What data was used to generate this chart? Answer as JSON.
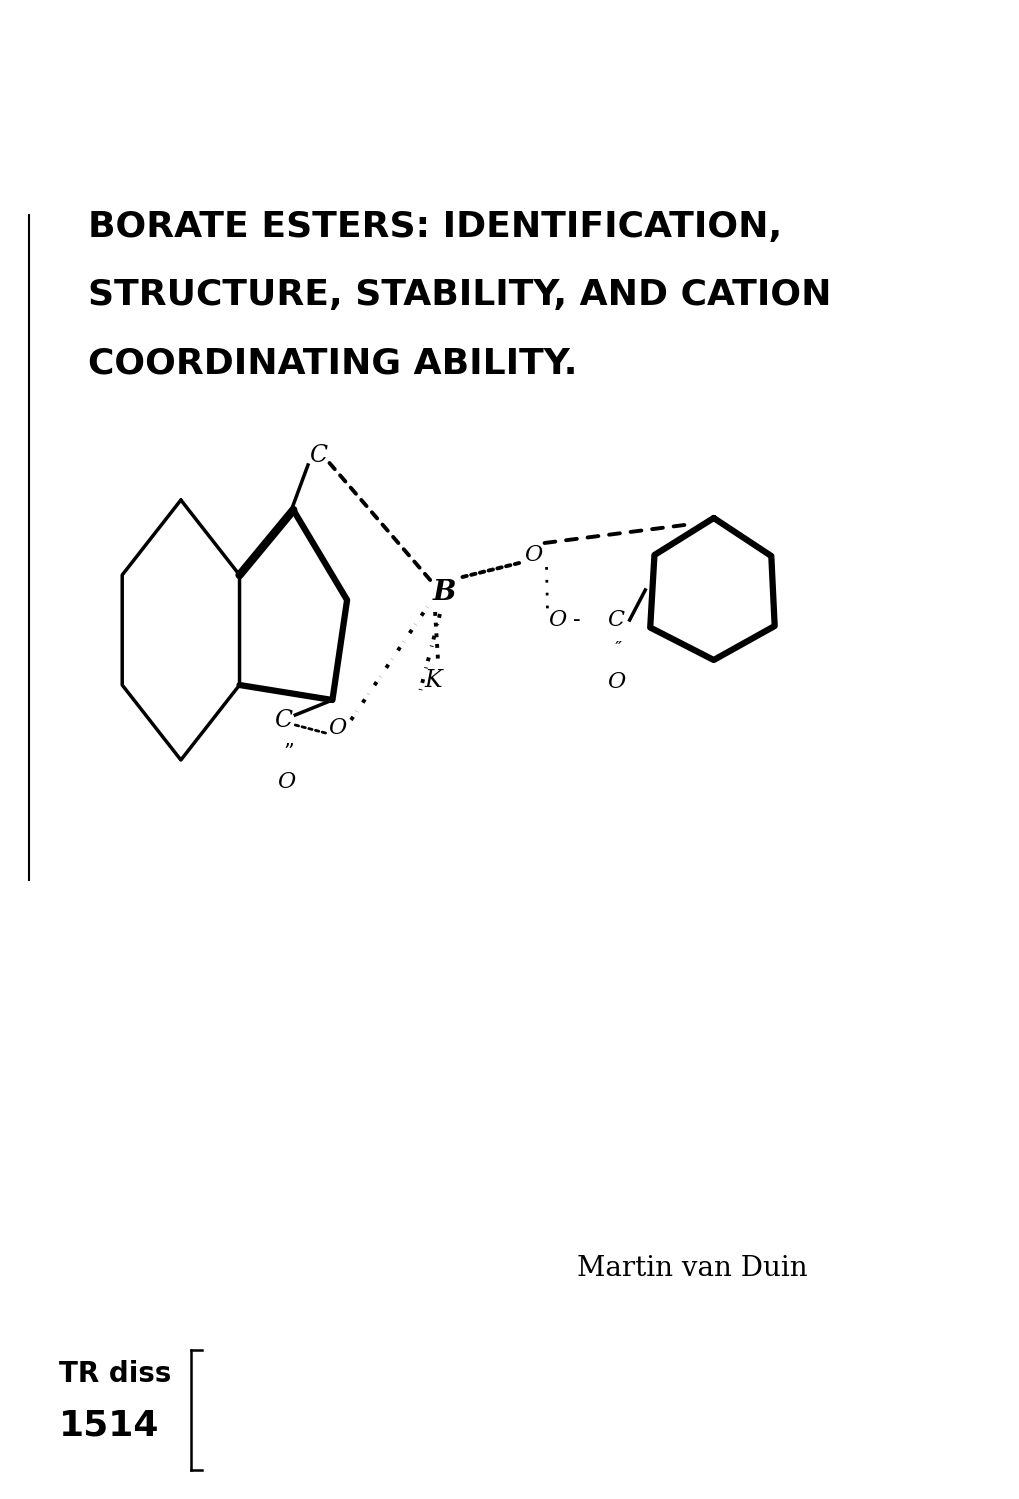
{
  "title_line1": "BORATE ESTERS: IDENTIFICATION,",
  "title_line2": "STRUCTURE, STABILITY, AND CATION",
  "title_line3": "COORDINATING ABILITY.",
  "author": "Martin van Duin",
  "trdiss": "TR diss",
  "trnum": "1514",
  "bg_color": "#ffffff",
  "text_color": "#000000",
  "title_fontsize": 26,
  "author_fontsize": 20,
  "trdiss_fontsize": 20,
  "trnum_fontsize": 26
}
